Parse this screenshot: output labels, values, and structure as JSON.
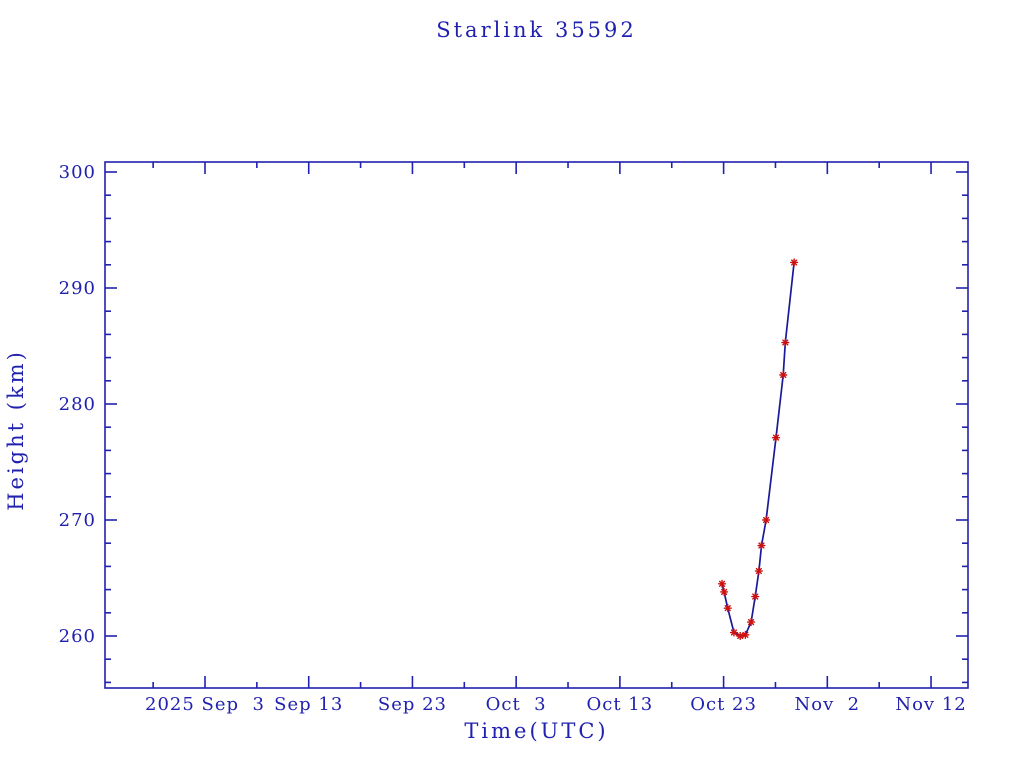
{
  "page": {
    "background": "#ffffff"
  },
  "chart_data": {
    "type": "line",
    "title": "Starlink 35592",
    "xlabel": "Time(UTC)",
    "ylabel": "Height (km)",
    "grid": false,
    "legend": false,
    "x_axis": {
      "unit": "days since 2025 Sep 3",
      "range_days": [
        -9.6,
        73.6
      ],
      "tick_days": [
        0,
        10,
        20,
        30,
        40,
        50,
        60,
        70
      ],
      "tick_labels": [
        "2025 Sep  3",
        "Sep 13",
        "Sep 23",
        "Oct  3",
        "Oct 13",
        "Oct 23",
        "Nov  2",
        "Nov 12"
      ],
      "minor_tick_days": [
        -5,
        5,
        15,
        25,
        35,
        45,
        55,
        65
      ]
    },
    "y_axis": {
      "unit": "km",
      "range": [
        255.5,
        300.9
      ],
      "ticks": [
        260,
        270,
        280,
        290,
        300
      ],
      "tick_labels": [
        "260",
        "270",
        "280",
        "290",
        "300"
      ],
      "minor_ticks": [
        256,
        258,
        262,
        264,
        266,
        268,
        272,
        274,
        276,
        278,
        282,
        284,
        286,
        288,
        292,
        294,
        296,
        298
      ]
    },
    "series": [
      {
        "name": "Starlink 35592 height",
        "marker": "asterisk",
        "points": [
          {
            "day": 49.85,
            "date": "2025 Oct 22.9",
            "height_km": 264.5
          },
          {
            "day": 50.05,
            "date": "2025 Oct 23.1",
            "height_km": 263.8
          },
          {
            "day": 50.4,
            "date": "2025 Oct 23.4",
            "height_km": 262.4
          },
          {
            "day": 51.0,
            "date": "2025 Oct 24.0",
            "height_km": 260.3
          },
          {
            "day": 51.6,
            "date": "2025 Oct 24.6",
            "height_km": 260.0
          },
          {
            "day": 52.1,
            "date": "2025 Oct 25.1",
            "height_km": 260.1
          },
          {
            "day": 52.65,
            "date": "2025 Oct 25.7",
            "height_km": 261.2
          },
          {
            "day": 53.05,
            "date": "2025 Oct 26.1",
            "height_km": 263.4
          },
          {
            "day": 53.4,
            "date": "2025 Oct 26.4",
            "height_km": 265.6
          },
          {
            "day": 53.65,
            "date": "2025 Oct 26.7",
            "height_km": 267.8
          },
          {
            "day": 54.1,
            "date": "2025 Oct 27.1",
            "height_km": 270.0
          },
          {
            "day": 55.05,
            "date": "2025 Oct 28.1",
            "height_km": 277.1
          },
          {
            "day": 55.75,
            "date": "2025 Oct 28.8",
            "height_km": 282.5
          },
          {
            "day": 55.95,
            "date": "2025 Oct 29.0",
            "height_km": 285.3
          },
          {
            "day": 56.8,
            "date": "2025 Oct 29.8",
            "height_km": 292.2
          }
        ]
      }
    ],
    "colors": {
      "axis": "#2121af",
      "text": "#2121af",
      "line": "#1a1a99",
      "marker": "#cc1111",
      "background": "#ffffff"
    }
  }
}
